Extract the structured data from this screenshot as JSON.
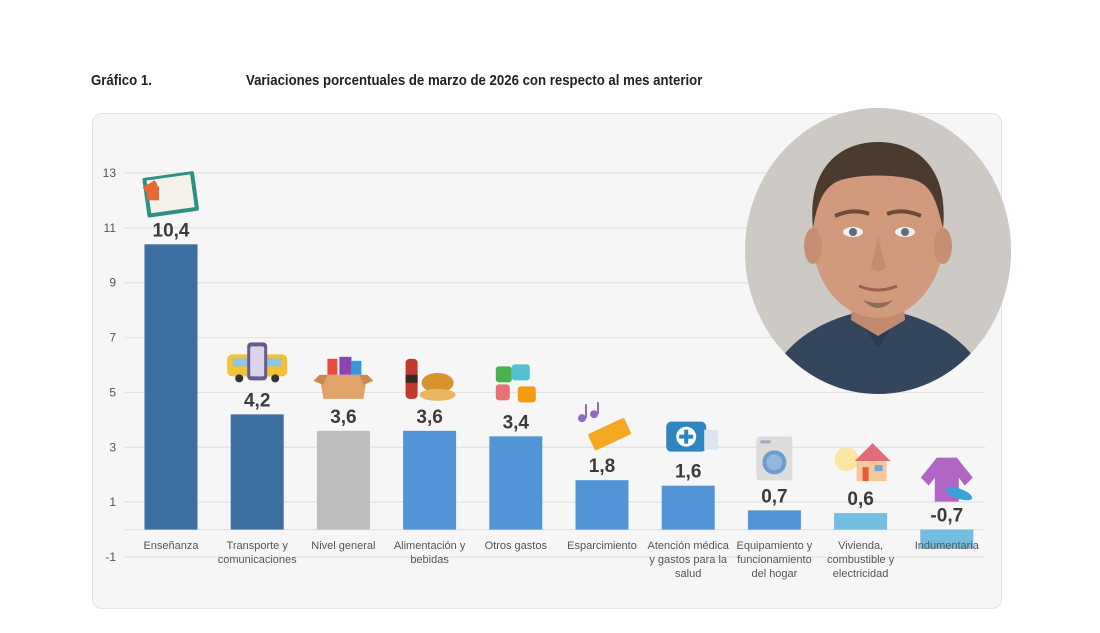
{
  "header": {
    "figure_number": "Gráfico 1.",
    "title": "Variaciones porcentuales de marzo de 2026 con respecto al mes anterior"
  },
  "chart_data": {
    "type": "bar",
    "title": "Variaciones porcentuales de marzo de 2026 con respecto al mes anterior",
    "xlabel": "",
    "ylabel": "",
    "ylim": [
      -1,
      13
    ],
    "yticks": [
      13,
      11,
      9,
      7,
      5,
      3,
      1,
      -1
    ],
    "grid": true,
    "categories": [
      "Enseñanza",
      "Transporte y comunicaciones",
      "Nivel general",
      "Alimentación y bebidas",
      "Otros gastos",
      "Esparcimiento",
      "Atención médica y gastos para la salud",
      "Equipamiento y funcionamiento del hogar",
      "Vivienda, combustible y electricidad",
      "Indumentaria"
    ],
    "category_lines": [
      [
        "Enseñanza"
      ],
      [
        "Transporte y",
        "comunicaciones"
      ],
      [
        "Nivel general"
      ],
      [
        "Alimentación y",
        "bebidas"
      ],
      [
        "Otros gastos"
      ],
      [
        "Esparcimiento"
      ],
      [
        "Atención médica",
        "y gastos para la",
        "salud"
      ],
      [
        "Equipamiento y",
        "funcionamiento",
        "del hogar"
      ],
      [
        "Vivienda,",
        "combustible y",
        "electricidad"
      ],
      [
        "Indumentaria"
      ]
    ],
    "values": [
      10.4,
      4.2,
      3.6,
      3.6,
      3.4,
      1.8,
      1.6,
      0.7,
      0.6,
      -0.7
    ],
    "value_labels": [
      "10,4",
      "4,2",
      "3,6",
      "3,6",
      "3,4",
      "1,8",
      "1,6",
      "0,7",
      "0,6",
      "-0,7"
    ],
    "colors": [
      "#3d6fa0",
      "#3d6fa0",
      "#bdbdbd",
      "#5295d6",
      "#5295d6",
      "#5295d6",
      "#5295d6",
      "#5295d6",
      "#72bde0",
      "#72bde0"
    ],
    "icons": [
      "book-icon",
      "bus-phone-icon",
      "grocery-box-icon",
      "food-drink-icon",
      "puzzle-money-icon",
      "ticket-music-icon",
      "medical-kit-icon",
      "washing-machine-icon",
      "house-bulb-icon",
      "clothing-icon"
    ]
  },
  "overlay": {
    "photo": "portrait-photo"
  }
}
